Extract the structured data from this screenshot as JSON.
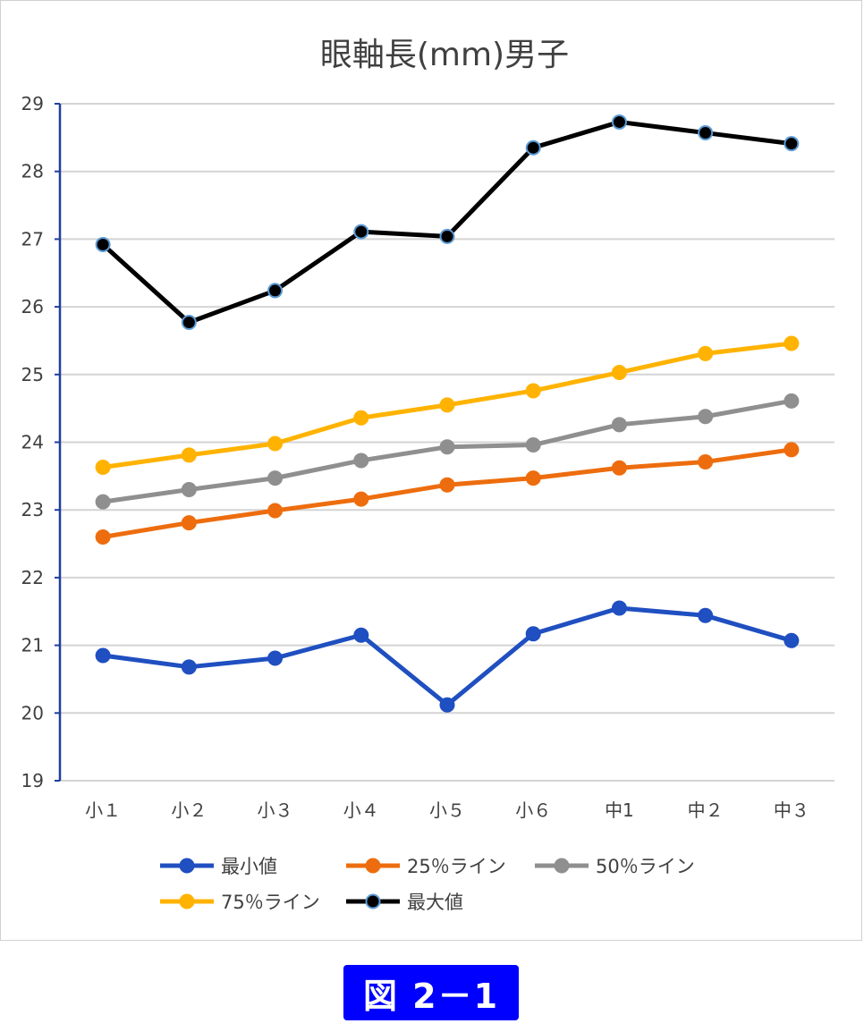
{
  "chart_data": {
    "type": "line",
    "title": "眼軸長(mm)男子",
    "xlabel": "",
    "ylabel": "",
    "ylim": [
      19,
      29
    ],
    "yticks": [
      "19",
      "20",
      "21",
      "22",
      "23",
      "24",
      "25",
      "26",
      "27",
      "28",
      "29"
    ],
    "grid": true,
    "legend_position": "bottom",
    "categories": [
      "小１",
      "小２",
      "小３",
      "小４",
      "小５",
      "小６",
      "中1",
      "中２",
      "中３"
    ],
    "series": [
      {
        "name": "最小値",
        "color": "#1f4fc0",
        "values": [
          20.85,
          20.68,
          20.81,
          21.15,
          20.12,
          21.17,
          21.55,
          21.44,
          21.07
        ]
      },
      {
        "name": "25％ライン",
        "color": "#ed6d0e",
        "values": [
          22.6,
          22.81,
          22.99,
          23.16,
          23.37,
          23.47,
          23.62,
          23.71,
          23.89
        ]
      },
      {
        "name": "50％ライン",
        "color": "#8f8f8f",
        "values": [
          23.12,
          23.3,
          23.47,
          23.73,
          23.93,
          23.96,
          24.26,
          24.38,
          24.61
        ]
      },
      {
        "name": "75％ライン",
        "color": "#ffb300",
        "values": [
          23.63,
          23.81,
          23.98,
          24.36,
          24.55,
          24.76,
          25.03,
          25.31,
          25.46
        ]
      },
      {
        "name": "最大値",
        "color": "#000000",
        "marker_edge": "#5b9bd5",
        "values": [
          26.92,
          25.77,
          26.24,
          27.11,
          27.04,
          28.35,
          28.73,
          28.57,
          28.41
        ]
      }
    ]
  },
  "figure_label": "図 2－1"
}
